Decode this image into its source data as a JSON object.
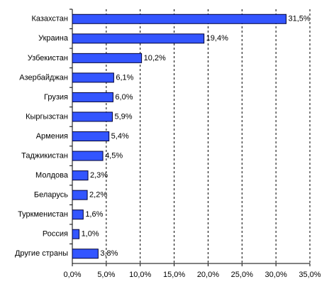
{
  "chart_data": {
    "type": "hbar",
    "categories": [
      "Казахстан",
      "Украина",
      "Узбекистан",
      "Азербайджан",
      "Грузия",
      "Кыргызстан",
      "Армения",
      "Таджикистан",
      "Молдова",
      "Беларусь",
      "Туркменистан",
      "Россия",
      "Другие страны"
    ],
    "values": [
      31.5,
      19.4,
      10.2,
      6.1,
      6.0,
      5.9,
      5.4,
      4.5,
      2.3,
      2.2,
      1.6,
      1.0,
      3.8
    ],
    "value_labels": [
      "31,5%",
      "19,4%",
      "10,2%",
      "6,1%",
      "6,0%",
      "5,9%",
      "5,4%",
      "4,5%",
      "2,3%",
      "2,2%",
      "1,6%",
      "1,0%",
      "3,8%"
    ],
    "color": "#3355ff",
    "xlim": [
      0,
      35
    ],
    "xticks": [
      {
        "value": 0,
        "label": "0,0%"
      },
      {
        "value": 5,
        "label": "5,0%"
      },
      {
        "value": 10,
        "label": "10,0%"
      },
      {
        "value": 15,
        "label": "15,0%"
      },
      {
        "value": 20,
        "label": "20,0%"
      },
      {
        "value": 25,
        "label": "25,0%"
      },
      {
        "value": 30,
        "label": "30,0%"
      },
      {
        "value": 35,
        "label": "35,0%"
      }
    ],
    "grid": true
  }
}
